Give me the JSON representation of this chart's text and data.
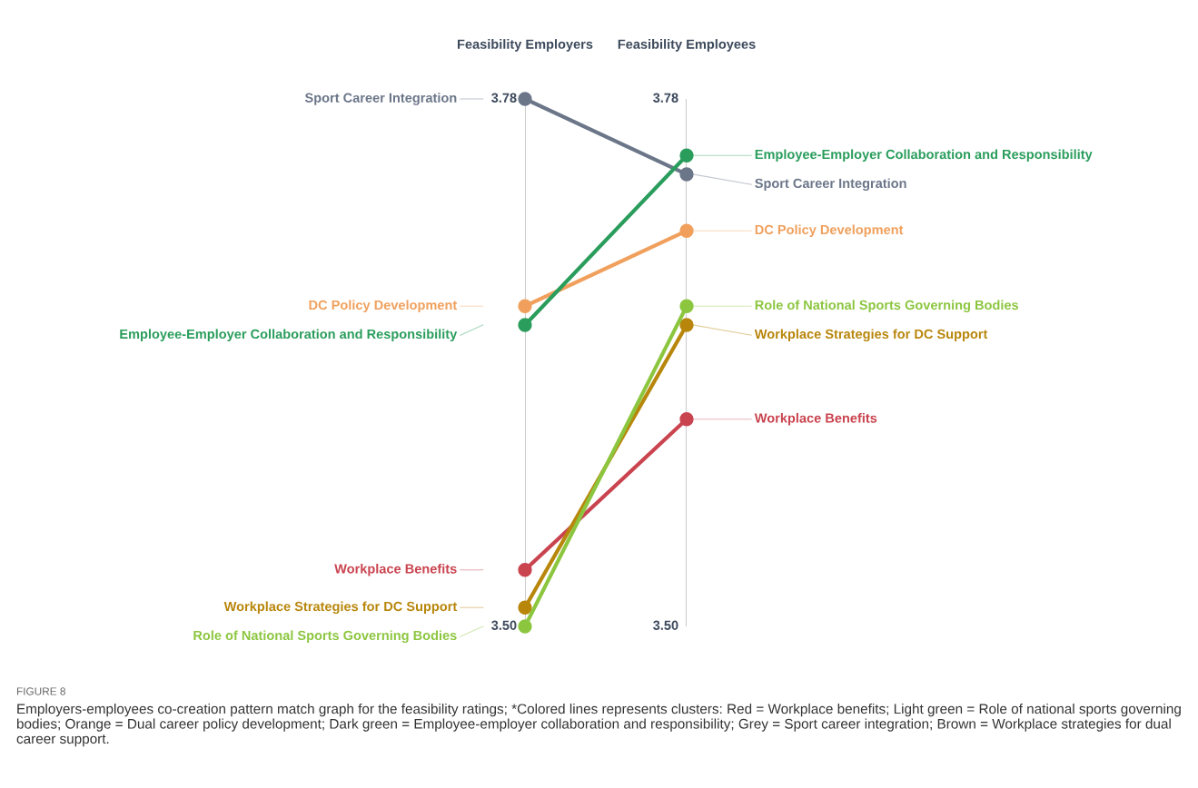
{
  "chart_data": {
    "type": "line",
    "categories": [
      "Feasibility Employers",
      "Feasibility Employees"
    ],
    "ylim": [
      3.5,
      3.78
    ],
    "yticks": [
      {
        "value": 3.5,
        "label": "3.50"
      },
      {
        "value": 3.78,
        "label": "3.78"
      }
    ],
    "grid": "x",
    "legend": "right",
    "marker": "circle",
    "line_style": "solid",
    "series": [
      {
        "name": "Sport Career Integration",
        "color": "#6b7689",
        "values": [
          3.78,
          3.74
        ]
      },
      {
        "name": "DC Policy Development",
        "color": "#f0a05c",
        "values": [
          3.67,
          3.71
        ]
      },
      {
        "name": "Employee-Employer Collaboration and Responsibility",
        "color": "#2a9d5c",
        "values": [
          3.66,
          3.75
        ]
      },
      {
        "name": "Workplace Benefits",
        "color": "#c9444f",
        "values": [
          3.53,
          3.61
        ]
      },
      {
        "name": "Workplace Strategies for DC Support",
        "color": "#b8860b",
        "values": [
          3.51,
          3.66
        ]
      },
      {
        "name": "Role of National Sports Governing Bodies",
        "color": "#8cc63f",
        "values": [
          3.5,
          3.67
        ]
      }
    ],
    "annotations": [
      "FIGURE 8",
      "Employers-employees co-creation pattern match graph for the feasibility ratings; *Colored lines represents clusters: Red = Workplace benefits; Light green = Role of national sports governing bodies; Orange = Dual career policy development; Dark green = Employee-employer collaboration and responsibility; Grey = Sport career integration; Brown = Workplace strategies for dual career support."
    ]
  }
}
